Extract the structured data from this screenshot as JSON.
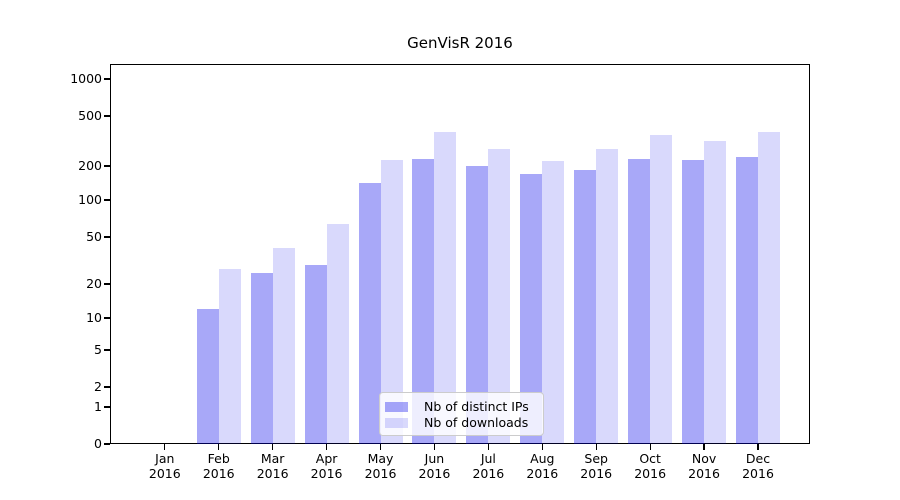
{
  "chart_data": {
    "type": "bar",
    "title": "GenVisR 2016",
    "xlabel": "",
    "ylabel": "",
    "categories": [
      "Jan 2016",
      "Feb 2016",
      "Mar 2016",
      "Apr 2016",
      "May 2016",
      "Jun 2016",
      "Jul 2016",
      "Aug 2016",
      "Sep 2016",
      "Oct 2016",
      "Nov 2016",
      "Dec 2016"
    ],
    "series": [
      {
        "name": "Nb of distinct IPs",
        "color": "rgba(0,0,235,0.34)",
        "values": [
          0,
          12,
          25,
          29,
          141,
          226,
          198,
          170,
          184,
          227,
          225,
          237
        ]
      },
      {
        "name": "Nb of downloads",
        "color": "rgba(0,0,235,0.15)",
        "values": [
          0,
          27,
          40,
          64,
          222,
          376,
          271,
          218,
          271,
          352,
          316,
          376
        ]
      }
    ],
    "yscale": "symlog",
    "y_ticks": [
      0,
      1,
      2,
      5,
      10,
      20,
      50,
      100,
      200,
      500,
      1000
    ],
    "ylim": [
      0,
      1100
    ],
    "grid": "horizontal",
    "legend_position": "lower center",
    "colors": {
      "major_gridline": "#b0b0b0",
      "minor_gridline": "#e9e9e9",
      "axis": "#000000",
      "background": "#ffffff"
    }
  }
}
